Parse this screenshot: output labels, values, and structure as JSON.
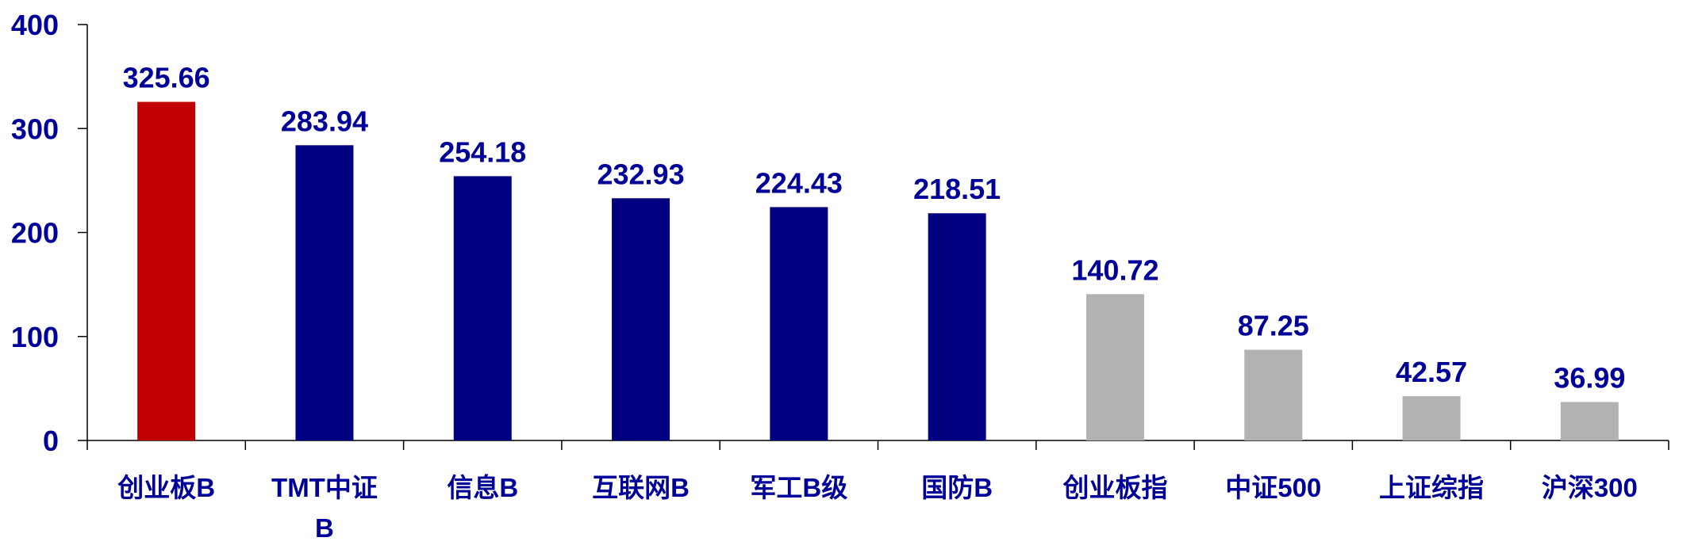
{
  "chart_data": {
    "type": "bar",
    "title": "",
    "xlabel": "",
    "ylabel": "",
    "ylim": [
      0,
      400
    ],
    "yticks": [
      "0",
      "100",
      "200",
      "300",
      "400"
    ],
    "grid": false,
    "categories": [
      "创业板B",
      "TMT中证B",
      "信息B",
      "互联网B",
      "军工B级",
      "国防B",
      "创业板指",
      "中证500",
      "上证综指",
      "沪深300"
    ],
    "values": [
      325.66,
      283.94,
      254.18,
      232.93,
      224.43,
      218.51,
      140.72,
      87.25,
      42.57,
      36.99
    ],
    "data_labels": [
      "325.66",
      "283.94",
      "254.18",
      "232.93",
      "224.43",
      "218.51",
      "140.72",
      "87.25",
      "42.57",
      "36.99"
    ],
    "bar_colors": [
      "#C00000",
      "#000080",
      "#000080",
      "#000080",
      "#000080",
      "#000080",
      "#B2B2B2",
      "#B2B2B2",
      "#B2B2B2",
      "#B2B2B2"
    ],
    "label_color": "#000099"
  }
}
